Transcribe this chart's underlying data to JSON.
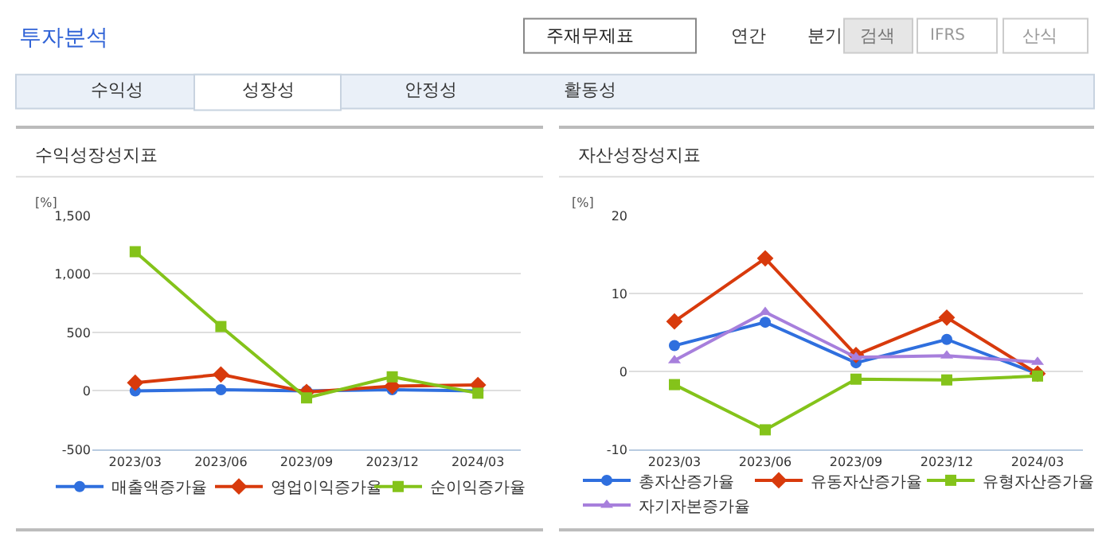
{
  "chart_data": [
    {
      "type": "other",
      "annotations": [
        "투자분석",
        "주재무제표",
        "연간",
        "분기",
        "검색",
        "IFRS",
        "산식",
        "수익성",
        "성장성",
        "안정성",
        "활동성"
      ]
    },
    {
      "type": "line",
      "title": "수익성장성지표",
      "ylabel": "[%]",
      "categories": [
        "2023/03",
        "2023/06",
        "2023/09",
        "2023/12",
        "2024/03"
      ],
      "ylim": [
        -500,
        1500
      ],
      "yticks": [
        {
          "value": -500,
          "label": "-500"
        },
        0,
        500,
        {
          "value": 1000,
          "label": "1,000"
        },
        {
          "value": 1500,
          "label": "1,500"
        }
      ],
      "grid": "y",
      "legend": "bottom",
      "series": [
        {
          "name": "매출액증가율",
          "color": "#2f6fde",
          "marker": "circle",
          "values": [
            0,
            10,
            0,
            10,
            0
          ]
        },
        {
          "name": "영업이익증가율",
          "color": "#d83a0c",
          "marker": "diamond",
          "values": [
            70,
            140,
            -10,
            40,
            50
          ]
        },
        {
          "name": "순이익증가율",
          "color": "#84c31a",
          "marker": "square",
          "values": [
            1190,
            550,
            -60,
            120,
            -20
          ]
        }
      ]
    },
    {
      "type": "line",
      "title": "자산성장성지표",
      "ylabel": "[%]",
      "categories": [
        "2023/03",
        "2023/06",
        "2023/09",
        "2023/12",
        "2024/03"
      ],
      "ylim": [
        -10,
        20
      ],
      "yticks": [
        -10,
        0,
        10,
        20
      ],
      "grid": "y",
      "legend": "bottom",
      "series": [
        {
          "name": "총자산증가율",
          "color": "#2f6fde",
          "marker": "circle",
          "values": [
            3.3,
            6.3,
            1.1,
            4.1,
            -0.3
          ]
        },
        {
          "name": "유동자산증가율",
          "color": "#d83a0c",
          "marker": "diamond",
          "values": [
            6.4,
            14.5,
            2.1,
            6.9,
            -0.3
          ]
        },
        {
          "name": "유형자산증가율",
          "color": "#84c31a",
          "marker": "square",
          "values": [
            -1.7,
            -7.5,
            -1.0,
            -1.1,
            -0.6
          ]
        },
        {
          "name": "자기자본증가율",
          "color": "#a77fdc",
          "marker": "triangle",
          "values": [
            1.4,
            7.6,
            1.8,
            2.0,
            1.2
          ]
        }
      ]
    }
  ]
}
